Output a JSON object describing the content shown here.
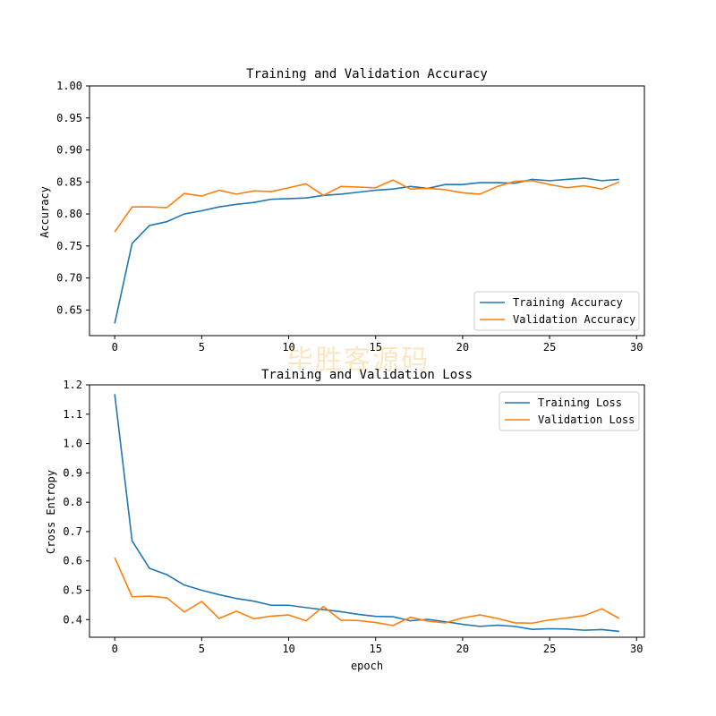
{
  "watermark": "毕胜客源码",
  "colors": {
    "training": "#1f77b4",
    "validation": "#ff7f0e"
  },
  "chart_data": [
    {
      "type": "line",
      "title": "Training and Validation Accuracy",
      "xlabel": "",
      "ylabel": "Accuracy",
      "xlim": [
        -1.45,
        30.45
      ],
      "ylim": [
        0.61,
        1.0
      ],
      "xticks": [
        0,
        5,
        10,
        15,
        20,
        25,
        30
      ],
      "yticks": [
        0.65,
        0.7,
        0.75,
        0.8,
        0.85,
        0.9,
        0.95,
        1.0
      ],
      "ytick_format": 2,
      "legend": "lower-right",
      "x": [
        0,
        1,
        2,
        3,
        4,
        5,
        6,
        7,
        8,
        9,
        10,
        11,
        12,
        13,
        14,
        15,
        16,
        17,
        18,
        19,
        20,
        21,
        22,
        23,
        24,
        25,
        26,
        27,
        28,
        29
      ],
      "series": [
        {
          "name": "Training Accuracy",
          "color": "#1f77b4",
          "values": [
            0.629,
            0.754,
            0.782,
            0.788,
            0.8,
            0.805,
            0.811,
            0.815,
            0.818,
            0.823,
            0.824,
            0.825,
            0.829,
            0.831,
            0.834,
            0.837,
            0.839,
            0.843,
            0.84,
            0.846,
            0.846,
            0.849,
            0.849,
            0.848,
            0.854,
            0.852,
            0.854,
            0.856,
            0.852,
            0.854
          ]
        },
        {
          "name": "Validation Accuracy",
          "color": "#ff7f0e",
          "values": [
            0.772,
            0.811,
            0.811,
            0.81,
            0.832,
            0.828,
            0.837,
            0.831,
            0.836,
            0.835,
            0.841,
            0.847,
            0.829,
            0.843,
            0.842,
            0.841,
            0.853,
            0.839,
            0.84,
            0.838,
            0.833,
            0.831,
            0.843,
            0.851,
            0.852,
            0.846,
            0.841,
            0.844,
            0.839,
            0.85
          ]
        }
      ]
    },
    {
      "type": "line",
      "title": "Training and Validation Loss",
      "xlabel": "epoch",
      "ylabel": "Cross Entropy",
      "xlim": [
        -1.45,
        30.45
      ],
      "ylim": [
        0.34,
        1.2
      ],
      "xticks": [
        0,
        5,
        10,
        15,
        20,
        25,
        30
      ],
      "yticks": [
        0.4,
        0.5,
        0.6,
        0.7,
        0.8,
        0.9,
        1.0,
        1.1,
        1.2
      ],
      "ytick_format": 1,
      "legend": "upper-right",
      "x": [
        0,
        1,
        2,
        3,
        4,
        5,
        6,
        7,
        8,
        9,
        10,
        11,
        12,
        13,
        14,
        15,
        16,
        17,
        18,
        19,
        20,
        21,
        22,
        23,
        24,
        25,
        26,
        27,
        28,
        29
      ],
      "series": [
        {
          "name": "Training Loss",
          "color": "#1f77b4",
          "values": [
            1.168,
            0.668,
            0.575,
            0.553,
            0.518,
            0.5,
            0.485,
            0.472,
            0.463,
            0.449,
            0.449,
            0.441,
            0.434,
            0.427,
            0.418,
            0.411,
            0.41,
            0.396,
            0.401,
            0.393,
            0.384,
            0.377,
            0.381,
            0.377,
            0.367,
            0.369,
            0.368,
            0.364,
            0.366,
            0.36
          ]
        },
        {
          "name": "Validation Loss",
          "color": "#ff7f0e",
          "values": [
            0.611,
            0.478,
            0.48,
            0.474,
            0.426,
            0.462,
            0.404,
            0.429,
            0.403,
            0.412,
            0.416,
            0.396,
            0.445,
            0.398,
            0.397,
            0.39,
            0.38,
            0.408,
            0.395,
            0.389,
            0.406,
            0.416,
            0.404,
            0.389,
            0.388,
            0.399,
            0.406,
            0.414,
            0.437,
            0.404
          ]
        }
      ]
    }
  ]
}
